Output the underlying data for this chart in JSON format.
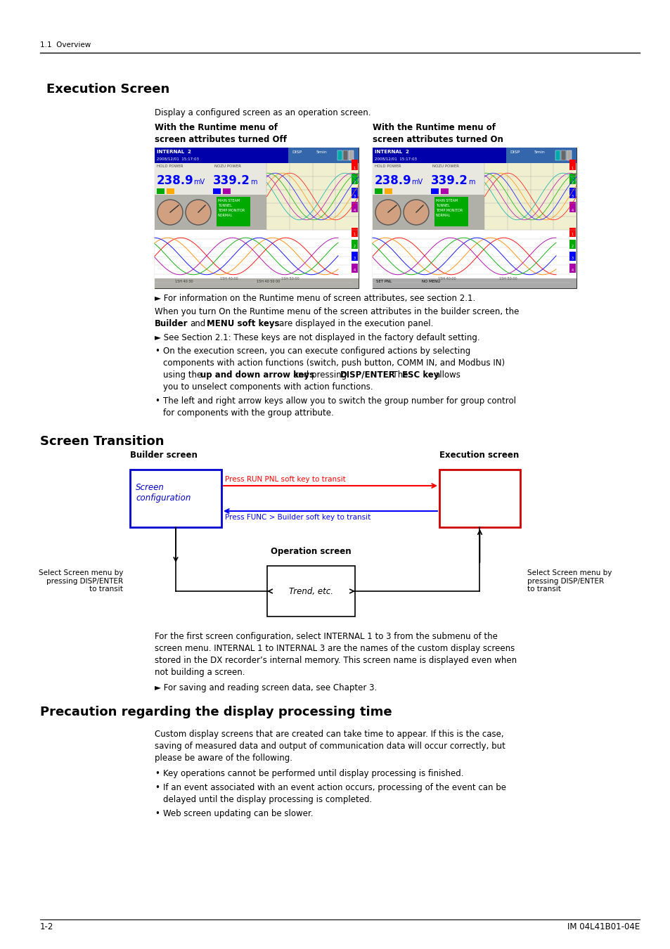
{
  "page_bg": "#ffffff",
  "header_text": "1.1  Overview",
  "section1_title": "Execution Screen",
  "section1_body1": "Display a configured screen as an operation screen.",
  "arrow1_text": "► For information on the Runtime menu of screen attributes, see section 2.1.",
  "arrow2_text": "► See Section 2.1: These keys are not displayed in the factory default setting.",
  "arrow3_text": "► For saving and reading screen data, see Chapter 3.",
  "section2_title": "Screen Transition",
  "diag_builder_label": "Builder screen",
  "diag_exec_label": "Execution screen",
  "diag_screen_config": "Screen\nconfiguration",
  "diag_arrow_red": "Press RUN PNL soft key to transit",
  "diag_arrow_blue": "Press FUNC > Builder soft key to transit",
  "diag_op_label": "Operation screen",
  "diag_trend": "Trend, etc.",
  "diag_left_text": "Select Screen menu by\npressing DISP/ENTER\nto transit",
  "diag_right_text": "Select Screen menu by\npressing DISP/ENTER\nto transit",
  "section3_title": "Precaution regarding the display processing time",
  "section3_body1": "Custom display screens that are created can take time to appear. If this is the case,",
  "section3_body2": "saving of measured data and output of communication data will occur correctly, but",
  "section3_body3": "please be aware of the following.",
  "bullet3": "Key operations cannot be performed until display processing is finished.",
  "bullet4a": "If an event associated with an event action occurs, processing of the event can be",
  "bullet4b": "delayed until the display processing is completed.",
  "bullet5": "Web screen updating can be slower.",
  "footer_left": "1-2",
  "footer_right": "IM 04L41B01-04E"
}
